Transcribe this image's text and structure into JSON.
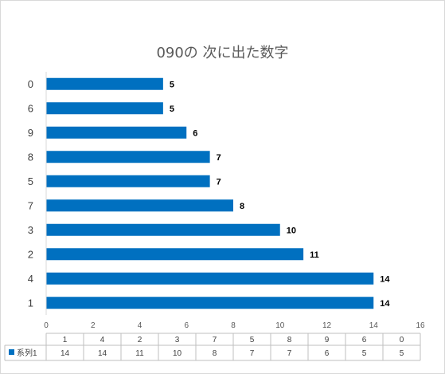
{
  "chart_data": {
    "type": "bar",
    "orientation": "horizontal",
    "title": "090の 次に出た数字",
    "categories": [
      "1",
      "4",
      "2",
      "3",
      "7",
      "5",
      "8",
      "9",
      "6",
      "0"
    ],
    "series": [
      {
        "name": "系列1",
        "values": [
          14,
          14,
          11,
          10,
          8,
          7,
          7,
          6,
          5,
          5
        ],
        "color": "#0070c0"
      }
    ],
    "xlim": [
      0,
      16
    ],
    "xticks": [
      "0",
      "2",
      "4",
      "6",
      "8",
      "10",
      "12",
      "14",
      "16"
    ],
    "xtick_values": [
      0,
      2,
      4,
      6,
      8,
      10,
      12,
      14,
      16
    ],
    "data_labels": true,
    "data_table": true,
    "grid": false,
    "legend": "data-table"
  }
}
